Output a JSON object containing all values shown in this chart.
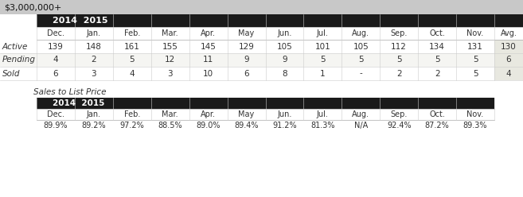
{
  "title": "$3,000,000+",
  "title_bg": "#c8c8c8",
  "year_header": "2014  2015",
  "year_header_bg": "#1a1a1a",
  "year_header_color": "#ffffff",
  "col_headers": [
    "Dec.",
    "Jan.",
    "Feb.",
    "Mar.",
    "Apr.",
    "May",
    "Jun.",
    "Jul.",
    "Aug.",
    "Sep.",
    "Oct.",
    "Nov.",
    "Avg."
  ],
  "row_labels": [
    "Active",
    "Pending",
    "Sold"
  ],
  "rows": [
    [
      "139",
      "148",
      "161",
      "155",
      "145",
      "129",
      "105",
      "101",
      "105",
      "112",
      "134",
      "131",
      "130"
    ],
    [
      "4",
      "2",
      "5",
      "12",
      "11",
      "9",
      "9",
      "5",
      "5",
      "5",
      "5",
      "5",
      "6"
    ],
    [
      "6",
      "3",
      "4",
      "3",
      "10",
      "6",
      "8",
      "1",
      "-",
      "2",
      "2",
      "5",
      "4"
    ]
  ],
  "avg_bg": "#e8e8e0",
  "section2_label": "Sales to List Price",
  "section2_col_headers": [
    "Dec.",
    "Jan.",
    "Feb.",
    "Mar.",
    "Apr.",
    "May",
    "Jun.",
    "Jul.",
    "Aug.",
    "Sep.",
    "Oct.",
    "Nov."
  ],
  "section2_values": [
    "89.9%",
    "89.2%",
    "97.2%",
    "88.5%",
    "89.0%",
    "89.4%",
    "91.2%",
    "81.3%",
    "N/A",
    "92.4%",
    "87.2%",
    "89.3%"
  ]
}
